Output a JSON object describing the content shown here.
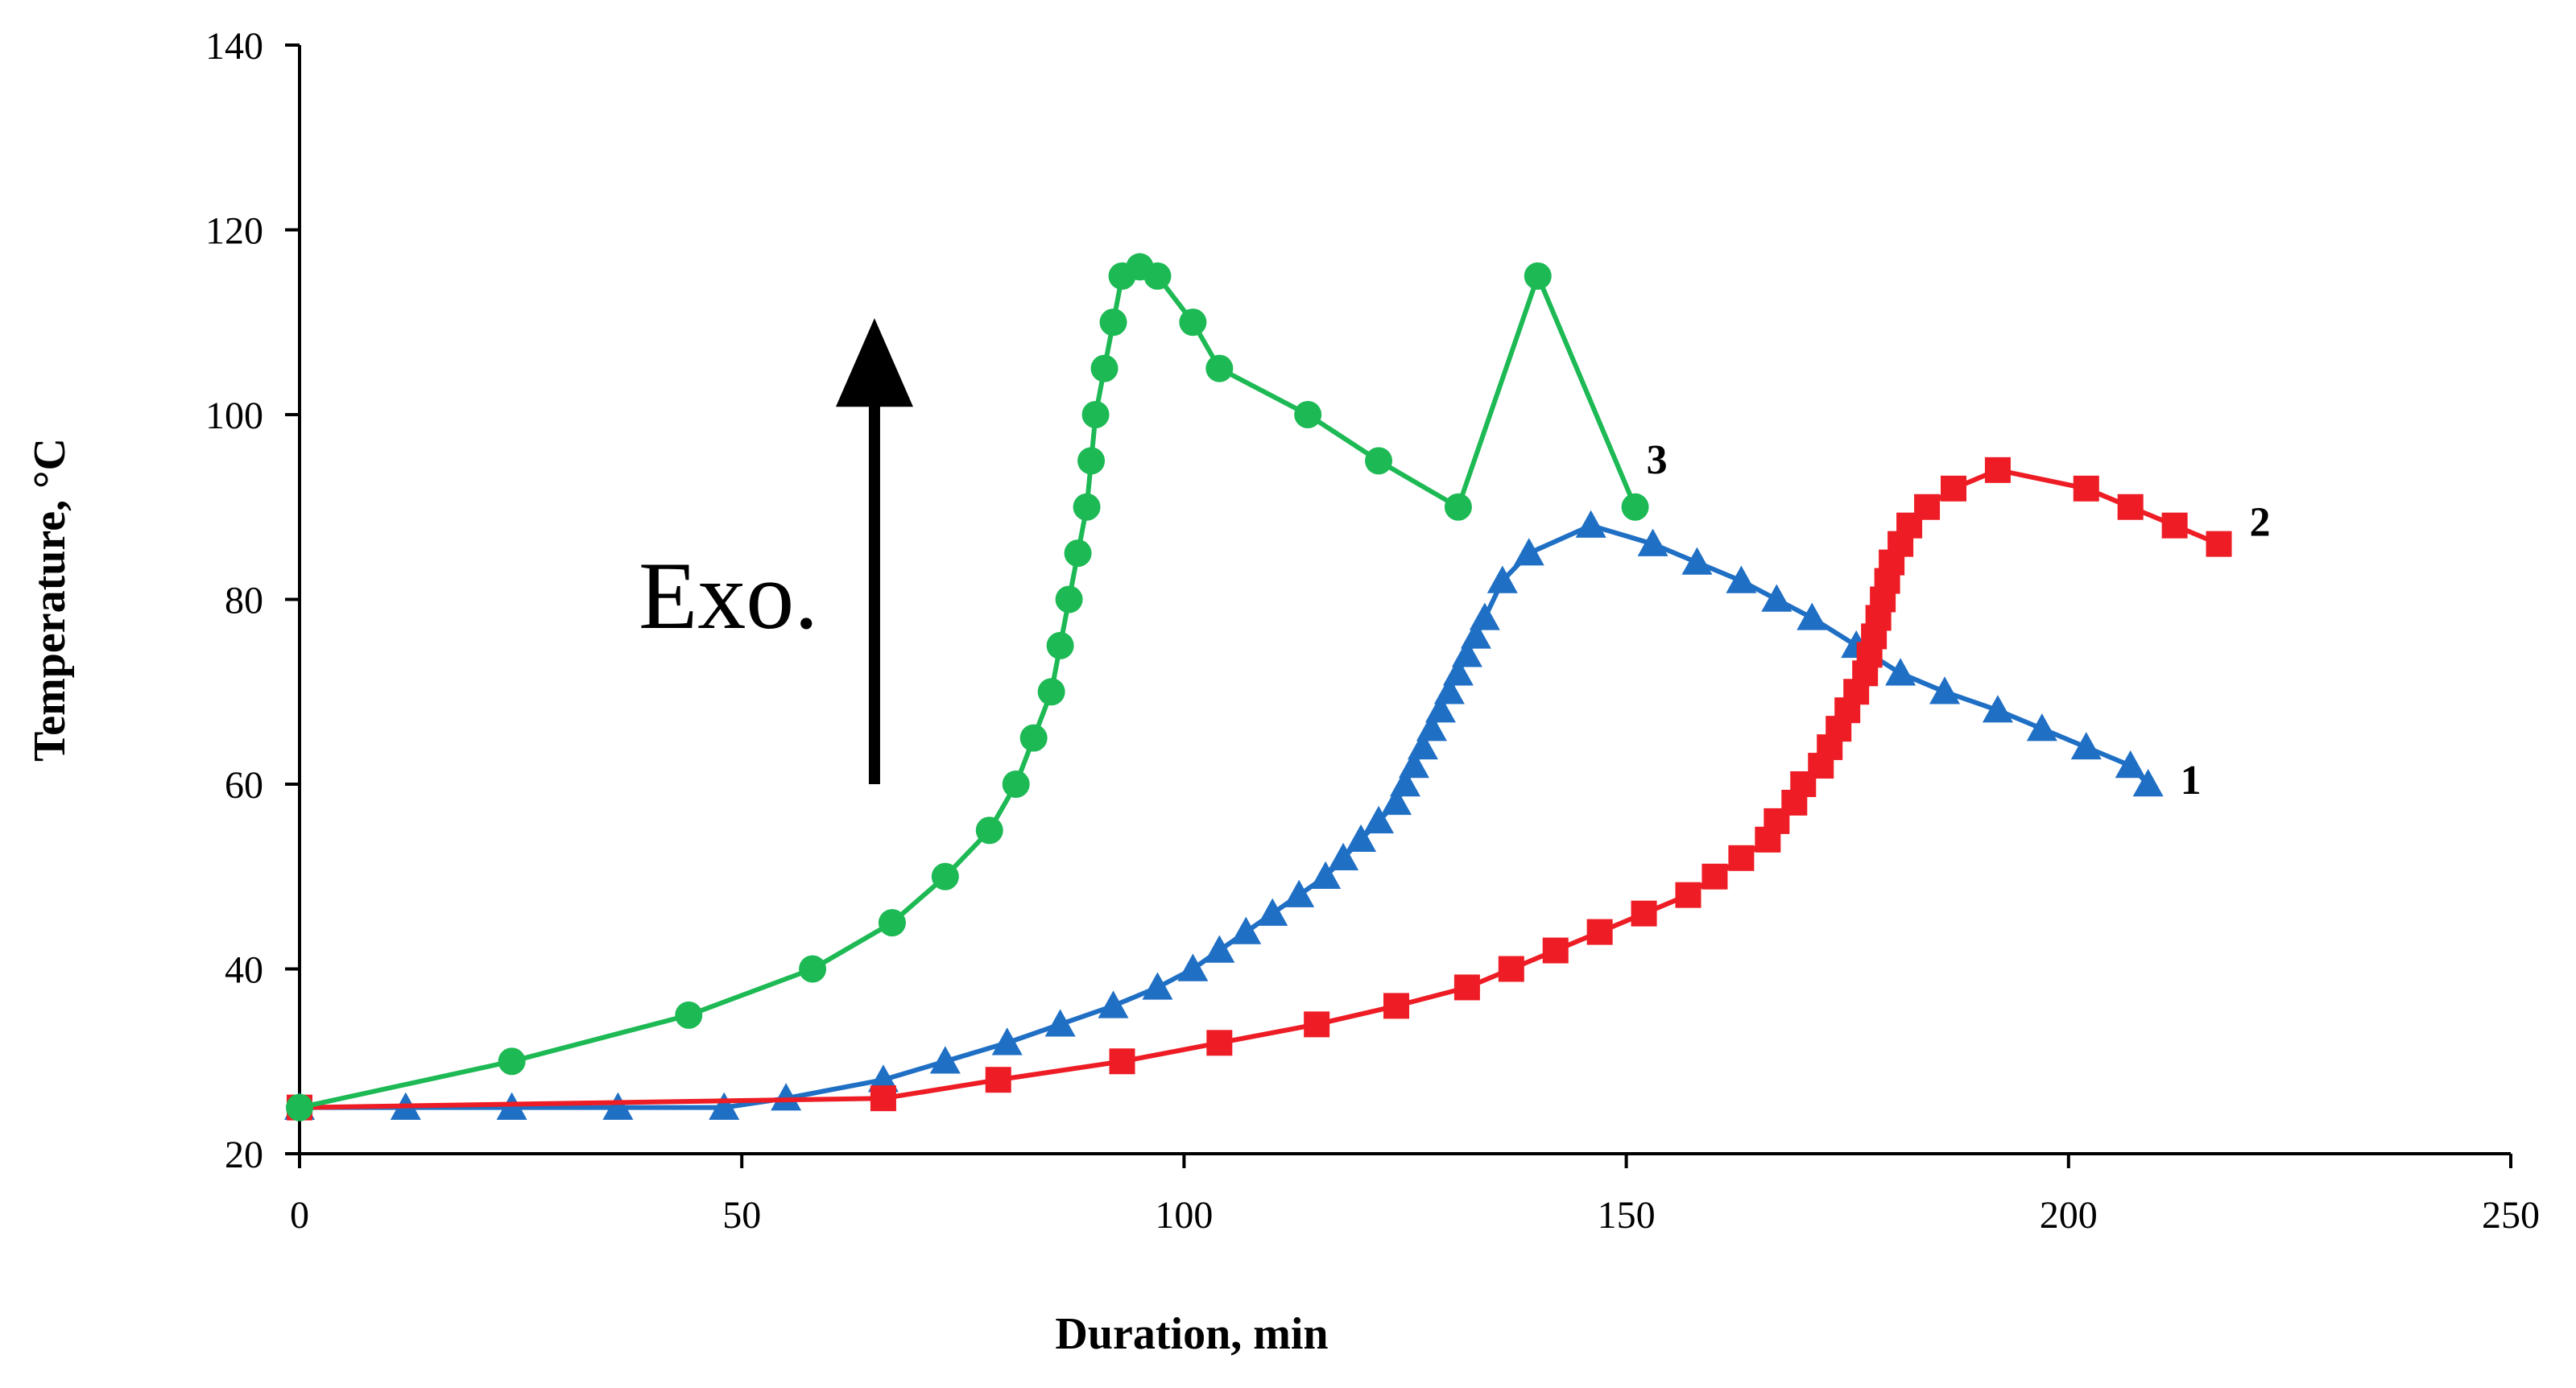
{
  "chart_data": {
    "type": "line",
    "title": "",
    "xlabel": "Duration, min",
    "ylabel": "Temperature, °C",
    "xlim": [
      0,
      250
    ],
    "ylim": [
      20,
      140
    ],
    "xticks": [
      0,
      50,
      100,
      150,
      200,
      250
    ],
    "yticks": [
      20,
      40,
      60,
      80,
      100,
      120,
      140
    ],
    "grid": false,
    "legend": "inline-labels",
    "annotation": {
      "text": "Exo.",
      "arrow_from": 60,
      "arrow_to": 110,
      "arrow_x": 65
    },
    "series": [
      {
        "name": "1",
        "color": "#1f6fc4",
        "marker": "triangle",
        "x": [
          0,
          12,
          24,
          36,
          48,
          55,
          66,
          73,
          80,
          86,
          92,
          97,
          101,
          104,
          107,
          110,
          113,
          116,
          118,
          120,
          122,
          124,
          125,
          126,
          127,
          128,
          129,
          130,
          131,
          132,
          133,
          134,
          136,
          139,
          146,
          153,
          158,
          163,
          167,
          171,
          176,
          181,
          186,
          192,
          197,
          202,
          207,
          209
        ],
        "y": [
          25,
          25,
          25,
          25,
          25,
          26,
          28,
          30,
          32,
          34,
          36,
          38,
          40,
          42,
          44,
          46,
          48,
          50,
          52,
          54,
          56,
          58,
          60,
          62,
          64,
          66,
          68,
          70,
          72,
          74,
          76,
          78,
          82,
          85,
          88,
          86,
          84,
          82,
          80,
          78,
          75,
          72,
          70,
          68,
          66,
          64,
          62,
          60
        ]
      },
      {
        "name": "2",
        "color": "#ee1c24",
        "marker": "square",
        "x": [
          0,
          66,
          79,
          93,
          104,
          115,
          124,
          132,
          137,
          142,
          147,
          152,
          157,
          160,
          163,
          166,
          167,
          169,
          170,
          172,
          173,
          174,
          175,
          176,
          177,
          177.5,
          178,
          178.5,
          179,
          179.5,
          180,
          181,
          182,
          184,
          187,
          192,
          202,
          207,
          212,
          217
        ],
        "y": [
          25,
          26,
          28,
          30,
          32,
          34,
          36,
          38,
          40,
          42,
          44,
          46,
          48,
          50,
          52,
          54,
          56,
          58,
          60,
          62,
          64,
          66,
          68,
          70,
          72,
          74,
          76,
          78,
          80,
          82,
          84,
          86,
          88,
          90,
          92,
          94,
          92,
          90,
          88,
          86
        ]
      },
      {
        "name": "3",
        "color": "#1db954",
        "marker": "circle",
        "x": [
          0,
          24,
          44,
          58,
          67,
          73,
          78,
          81,
          83,
          85,
          86,
          87,
          88,
          89,
          89.5,
          90,
          91,
          92,
          93,
          95,
          97,
          101,
          104,
          114,
          122,
          131,
          140,
          151
        ],
        "y": [
          25,
          30,
          35,
          40,
          45,
          50,
          55,
          60,
          65,
          70,
          75,
          80,
          85,
          90,
          95,
          100,
          105,
          110,
          115,
          116,
          115,
          110,
          105,
          100,
          95,
          90,
          115,
          90
        ]
      }
    ]
  }
}
